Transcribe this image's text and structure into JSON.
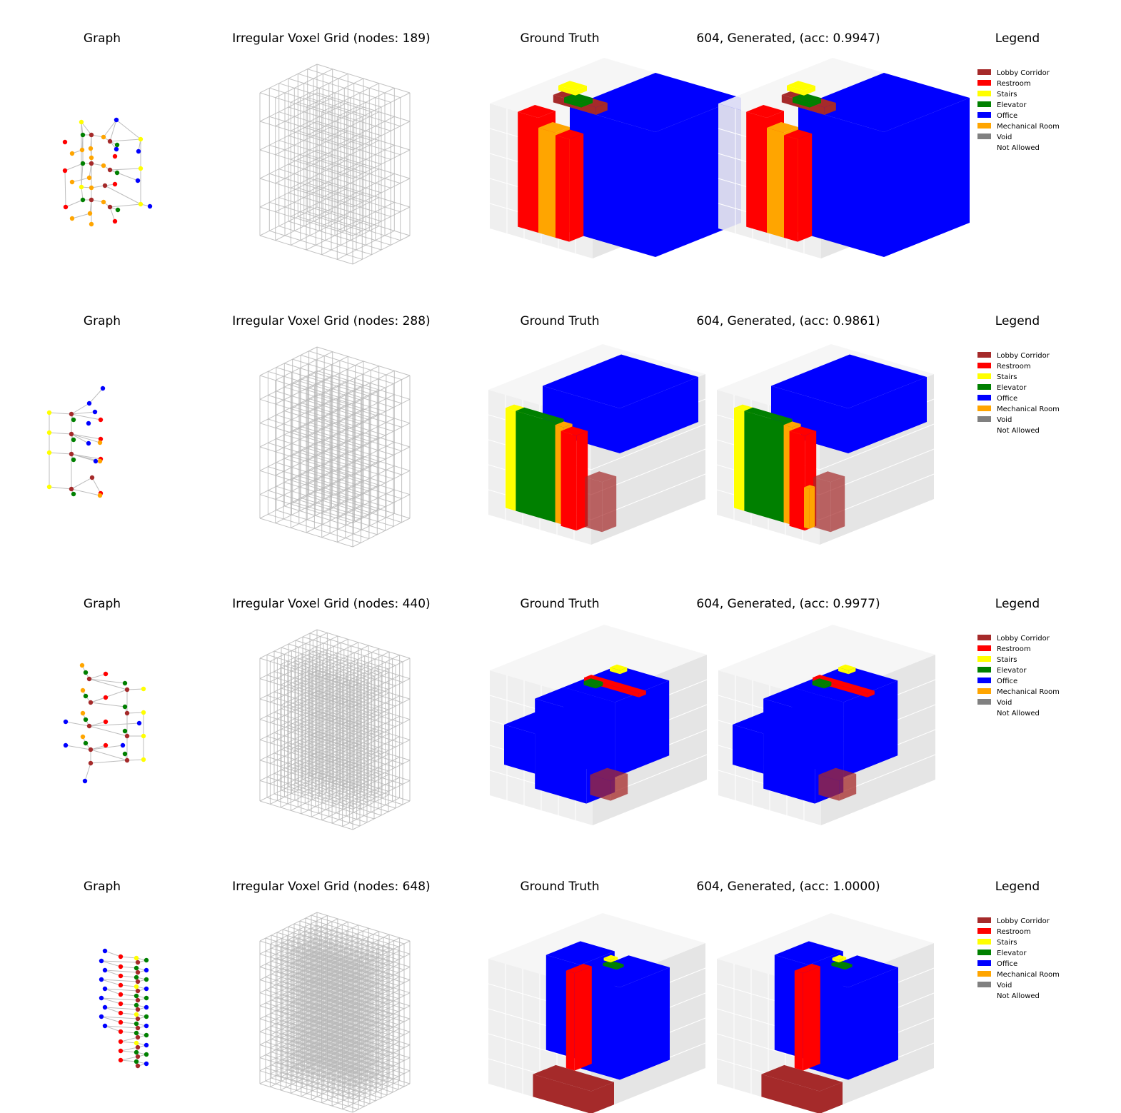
{
  "rows": [
    {
      "graph_title": "Graph",
      "grid_title": "Irregular Voxel Grid (nodes: 189)",
      "gt_title": "Ground Truth",
      "gen_title": "604, Generated, (acc: 0.9947)",
      "legend_title": "Legend"
    },
    {
      "graph_title": "Graph",
      "grid_title": "Irregular Voxel Grid (nodes: 288)",
      "gt_title": "Ground Truth",
      "gen_title": "604, Generated, (acc: 0.9861)",
      "legend_title": "Legend"
    },
    {
      "graph_title": "Graph",
      "grid_title": "Irregular Voxel Grid (nodes: 440)",
      "gt_title": "Ground Truth",
      "gen_title": "604, Generated, (acc: 0.9977)",
      "legend_title": "Legend"
    },
    {
      "graph_title": "Graph",
      "grid_title": "Irregular Voxel Grid (nodes: 648)",
      "gt_title": "Ground Truth",
      "gen_title": "604, Generated, (acc: 1.0000)",
      "legend_title": "Legend"
    }
  ],
  "legend": [
    {
      "label": "Lobby Corridor",
      "color": "#a52a2a"
    },
    {
      "label": "Restroom",
      "color": "#ff0000"
    },
    {
      "label": "Stairs",
      "color": "#ffff00"
    },
    {
      "label": "Elevator",
      "color": "#008000"
    },
    {
      "label": "Office",
      "color": "#0000ff"
    },
    {
      "label": "Mechanical Room",
      "color": "#ffa500"
    },
    {
      "label": "Void",
      "color": "#808080"
    },
    {
      "label": "Not Allowed",
      "color": "#ffffff"
    }
  ]
}
